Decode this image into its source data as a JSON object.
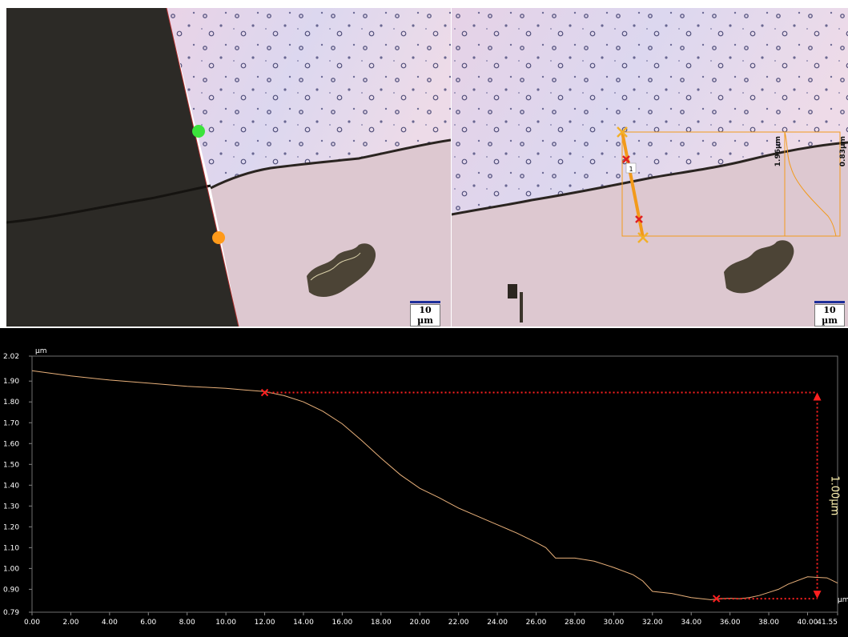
{
  "images": {
    "left": {
      "scale_bar_label": "10 µm",
      "markers": [
        "green-point",
        "orange-point"
      ]
    },
    "right": {
      "scale_bar_label": "10 µm",
      "profile_label": "1",
      "dim_label_1": "1.96µm",
      "dim_label_2": "0.83µm"
    }
  },
  "colors": {
    "curve": "#e8b07a",
    "marker": "#ff2020",
    "dimension": "#ff2020",
    "annotation_text": "#fff3b0",
    "profile_line": "#f29a1b",
    "point_green": "#3be33b",
    "point_orange": "#ff9a1a"
  },
  "chart_data": {
    "type": "line",
    "y_unit": "µm",
    "x_unit": "µm",
    "xlim": [
      0,
      41.55
    ],
    "ylim": [
      0.79,
      2.02
    ],
    "x_ticks": [
      "0.00",
      "2.00",
      "4.00",
      "6.00",
      "8.00",
      "10.00",
      "12.00",
      "14.00",
      "16.00",
      "18.00",
      "20.00",
      "22.00",
      "24.00",
      "26.00",
      "28.00",
      "30.00",
      "32.00",
      "34.00",
      "36.00",
      "38.00",
      "40.00",
      "41.55"
    ],
    "y_ticks": [
      "0.79",
      "0.90",
      "1.00",
      "1.10",
      "1.20",
      "1.30",
      "1.40",
      "1.50",
      "1.60",
      "1.70",
      "1.80",
      "1.90",
      "2.02"
    ],
    "series": [
      {
        "x": [
          0,
          2,
          4,
          6,
          8,
          10,
          11,
          12,
          13,
          14,
          15,
          16,
          17,
          18,
          19,
          20,
          21,
          22,
          23,
          24,
          25,
          26,
          26.5,
          27,
          28,
          29,
          30,
          31,
          31.5,
          32,
          33,
          34,
          35,
          35.5,
          36,
          36.5,
          37,
          37.5,
          38,
          38.5,
          39,
          40,
          41,
          41.55
        ],
        "y": [
          1.95,
          1.925,
          1.905,
          1.89,
          1.875,
          1.865,
          1.857,
          1.85,
          1.83,
          1.8,
          1.755,
          1.695,
          1.615,
          1.53,
          1.45,
          1.385,
          1.34,
          1.29,
          1.25,
          1.21,
          1.17,
          1.125,
          1.1,
          1.05,
          1.05,
          1.035,
          1.005,
          0.97,
          0.94,
          0.89,
          0.88,
          0.86,
          0.85,
          0.855,
          0.857,
          0.855,
          0.86,
          0.87,
          0.885,
          0.9,
          0.925,
          0.96,
          0.955,
          0.93
        ]
      }
    ],
    "markers": [
      {
        "x": 12.0,
        "y": 1.845
      },
      {
        "x": 35.3,
        "y": 0.855
      }
    ],
    "annotation": {
      "label": "1.00µm",
      "x": 40.5,
      "y_top": 1.845,
      "y_bottom": 0.855
    }
  }
}
